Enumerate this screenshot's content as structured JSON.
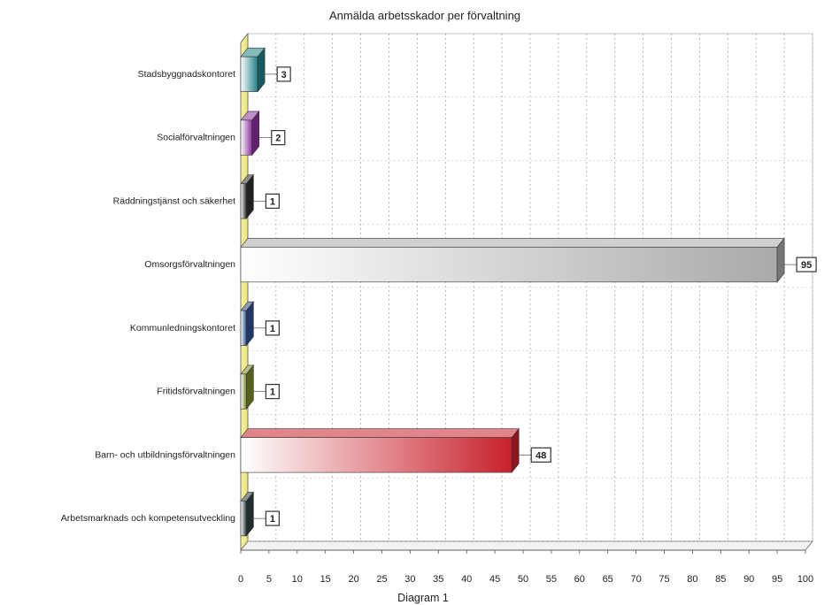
{
  "chart_data": {
    "type": "bar",
    "orientation": "horizontal",
    "three_d": true,
    "title": "Anmälda arbetsskador per förvaltning",
    "xlabel": "Diagram 1",
    "ylabel": "",
    "xlim": [
      0,
      100
    ],
    "x_ticks": [
      "0",
      "5",
      "10",
      "15",
      "20",
      "25",
      "30",
      "35",
      "40",
      "45",
      "50",
      "55",
      "60",
      "65",
      "70",
      "75",
      "80",
      "85",
      "90",
      "95",
      "100"
    ],
    "grid": true,
    "legend": "none",
    "categories": [
      "Stadsbyggnadskontoret",
      "Socialförvaltningen",
      "Räddningstjänst och säkerhet",
      "Omsorgsförvaltningen",
      "Kommunledningskontoret",
      "Fritidsförvaltningen",
      "Barn- och utbildningsförvaltningen",
      "Arbetsmarknads och kompetensutveckling"
    ],
    "values": [
      3,
      2,
      1,
      95,
      1,
      1,
      48,
      1
    ],
    "data_labels": [
      "3",
      "2",
      "1",
      "95",
      "1",
      "1",
      "48",
      "1"
    ],
    "bar_colors": [
      "#1f7f86",
      "#8a2f9b",
      "#2f2f2f",
      "#a9a9a9",
      "#2c4f8c",
      "#7c8a2a",
      "#c8212b",
      "#2f3f3f"
    ]
  }
}
